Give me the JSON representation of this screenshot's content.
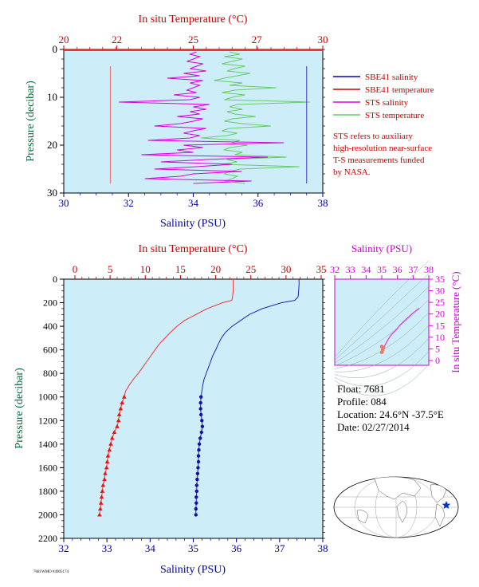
{
  "top_chart": {
    "top_axis_label": "In situ Temperature (°C)",
    "bottom_axis_label": "Salinity (PSU)",
    "left_axis_label": "Pressure (decibar)",
    "temp_ticks": [
      "20",
      "22",
      "25",
      "27",
      "30"
    ],
    "sal_ticks": [
      "30",
      "32",
      "34",
      "36",
      "38"
    ],
    "pres_ticks": [
      "0",
      "10",
      "20",
      "30"
    ]
  },
  "legend": {
    "items": [
      {
        "label": "SBE41 salinity",
        "color": "#0000cc"
      },
      {
        "label": "SBE41 temperature",
        "color": "#cc0000"
      },
      {
        "label": "STS salinity",
        "color": "#dd00dd"
      },
      {
        "label": "STS temperature",
        "color": "#33bb33"
      }
    ],
    "note_lines": [
      "STS refers to auxiliary",
      "high-resolution near-surface",
      "T-S measurements funded",
      "by NASA."
    ]
  },
  "bottom_chart": {
    "top_axis_label": "In situ Temperature (°C)",
    "bottom_axis_label": "Salinity (PSU)",
    "left_axis_label": "Pressure (decibar)",
    "temp_ticks": [
      "0",
      "5",
      "10",
      "15",
      "20",
      "25",
      "30",
      "35"
    ],
    "sal_ticks": [
      "32",
      "33",
      "34",
      "35",
      "36",
      "37",
      "38"
    ],
    "pres_ticks": [
      "0",
      "200",
      "400",
      "600",
      "800",
      "1000",
      "1200",
      "1400",
      "1600",
      "1800",
      "2000",
      "2200"
    ]
  },
  "ts_inset": {
    "top_axis_label": "Salinity (PSU)",
    "right_axis_label": "In situ Temperature (°C)",
    "sal_ticks": [
      "32",
      "33",
      "34",
      "35",
      "36",
      "37",
      "38"
    ],
    "temp_ticks": [
      "0",
      "5",
      "10",
      "15",
      "20",
      "25",
      "30",
      "35"
    ]
  },
  "info": {
    "float": "Float:  7681",
    "profile": "Profile:  084",
    "location": "Location:  24.6°N  -37.5°E",
    "date": "Date:  02/27/2014"
  },
  "footer_code": "7681WMO #4905174",
  "colors": {
    "plot_bg": "#cdeef8",
    "temperature": "#ee3333",
    "salinity": "#2222bb",
    "sts_salinity": "#dd00dd",
    "sts_temperature": "#66cc66",
    "temp_axis": "#cc0000",
    "sal_axis": "#0000aa",
    "pres_axis": "#006633"
  },
  "chart_data": [
    {
      "type": "line",
      "panel": "near-surface",
      "title": "",
      "temp_range": [
        20,
        30
      ],
      "sal_range": [
        30,
        38
      ],
      "pres_range": [
        0,
        30
      ],
      "grid": false,
      "sbe41_temperature": {
        "pressure": [
          3.5,
          28
        ],
        "temperature": [
          21.8,
          21.8
        ]
      },
      "sbe41_salinity": {
        "pressure": [
          3.5,
          28
        ],
        "salinity": [
          37.5,
          37.5
        ]
      },
      "sts_salinity_pressure": [
        0.5,
        1,
        1.5,
        2,
        2.5,
        3,
        3.5,
        4,
        4.5,
        5,
        5.5,
        6,
        6.5,
        7,
        7.5,
        8,
        8.5,
        9,
        9.5,
        10,
        10.5,
        11,
        11.5,
        12,
        12.5,
        13,
        13.5,
        14,
        14.5,
        15,
        15.5,
        16,
        16.5,
        17,
        17.5,
        18,
        18.5,
        19,
        19.5,
        20,
        20.5,
        21,
        21.5,
        22,
        22.5,
        23,
        23.5,
        24,
        24.5,
        25,
        25.5,
        26,
        26.5,
        27,
        27.5,
        28
      ],
      "sts_salinity": [
        34.1,
        33.9,
        34.2,
        34.0,
        33.8,
        34.3,
        34.1,
        33.9,
        34.4,
        33.7,
        34.2,
        33.2,
        34.3,
        33.9,
        34.2,
        34.0,
        33.8,
        34.1,
        33.4,
        34.2,
        33.9,
        31.7,
        34.5,
        34.0,
        34.4,
        33.9,
        34.2,
        33.5,
        34.3,
        34.0,
        33.6,
        32.8,
        34.4,
        34.0,
        33.7,
        34.2,
        33.9,
        32.6,
        36.8,
        33.7,
        34.3,
        33.5,
        34.0,
        32.4,
        36.3,
        34.4,
        33.0,
        35.2,
        34.1,
        32.8,
        35.5,
        34.0,
        33.6,
        32.5,
        35.8,
        34.0
      ],
      "sts_temperature_pressure": [
        0.5,
        1,
        1.5,
        2,
        2.5,
        3,
        3.5,
        4,
        4.5,
        5,
        5.5,
        6,
        6.5,
        7,
        7.5,
        8,
        8.5,
        9,
        9.5,
        10,
        10.5,
        11,
        11.5,
        12,
        12.5,
        13,
        13.5,
        14,
        14.5,
        15,
        15.5,
        16,
        16.5,
        17,
        17.5,
        18,
        18.5,
        19,
        19.5,
        20,
        20.5,
        21,
        21.5,
        22,
        22.5,
        23,
        23.5,
        24,
        24.5,
        25,
        25.5,
        26,
        26.5,
        27,
        27.5,
        28
      ],
      "sts_temperature": [
        26.4,
        26.8,
        26.2,
        26.9,
        26.5,
        26.1,
        27.0,
        26.6,
        26.3,
        27.2,
        26.7,
        26.2,
        25.8,
        26.9,
        26.4,
        28.2,
        26.6,
        26.1,
        27.0,
        26.5,
        26.2,
        29.5,
        26.7,
        26.4,
        26.9,
        26.3,
        26.6,
        27.4,
        26.5,
        26.2,
        26.9,
        28.0,
        26.4,
        26.1,
        26.7,
        26.3,
        25.3,
        26.8,
        26.5,
        27.1,
        26.4,
        26.2,
        26.9,
        26.6,
        28.6,
        26.3,
        26.7,
        26.1,
        29.1,
        26.8,
        26.4,
        26.2,
        26.7,
        26.5,
        26.2,
        27.0
      ]
    },
    {
      "type": "line",
      "panel": "full-profile",
      "title": "",
      "temp_range": [
        0,
        35
      ],
      "sal_range": [
        32,
        38
      ],
      "pres_range": [
        0,
        2200
      ],
      "grid": false,
      "temperature_profile": {
        "pressure": [
          0,
          50,
          100,
          150,
          180,
          200,
          250,
          300,
          350,
          400,
          450,
          500,
          550,
          600,
          650,
          700,
          750,
          800,
          850,
          900,
          950,
          1000,
          1050,
          1100,
          1150,
          1200,
          1250,
          1300,
          1350,
          1400,
          1450,
          1500,
          1550,
          1600,
          1650,
          1700,
          1750,
          1800,
          1850,
          1900,
          1950,
          2000
        ],
        "temperature": [
          22.5,
          22.5,
          22.5,
          22.4,
          22.3,
          21.0,
          18.8,
          17.2,
          15.6,
          14.5,
          13.6,
          12.8,
          12.0,
          11.4,
          10.8,
          10.2,
          9.6,
          9.0,
          8.3,
          7.7,
          7.2,
          7.0,
          6.7,
          6.5,
          6.3,
          6.2,
          6.0,
          5.6,
          5.3,
          5.1,
          4.9,
          4.7,
          4.6,
          4.5,
          4.3,
          4.2,
          4.0,
          3.9,
          3.8,
          3.7,
          3.6,
          3.5
        ]
      },
      "salinity_profile": {
        "pressure": [
          0,
          50,
          100,
          150,
          180,
          200,
          250,
          300,
          350,
          400,
          450,
          500,
          550,
          600,
          650,
          700,
          750,
          800,
          850,
          900,
          950,
          1000,
          1050,
          1100,
          1150,
          1200,
          1250,
          1300,
          1350,
          1400,
          1450,
          1500,
          1550,
          1600,
          1650,
          1700,
          1750,
          1800,
          1850,
          1900,
          1950,
          2000
        ],
        "salinity": [
          37.45,
          37.45,
          37.44,
          37.43,
          37.35,
          37.05,
          36.6,
          36.3,
          36.1,
          35.9,
          35.75,
          35.65,
          35.58,
          35.52,
          35.45,
          35.4,
          35.35,
          35.3,
          35.25,
          35.22,
          35.2,
          35.18,
          35.17,
          35.17,
          35.18,
          35.2,
          35.21,
          35.19,
          35.16,
          35.14,
          35.13,
          35.12,
          35.12,
          35.11,
          35.1,
          35.09,
          35.08,
          35.08,
          35.07,
          35.07,
          35.06,
          35.06
        ]
      },
      "marker_pressures": [
        1000,
        1050,
        1100,
        1150,
        1200,
        1250,
        1300,
        1350,
        1400,
        1450,
        1500,
        1550,
        1600,
        1650,
        1700,
        1750,
        1800,
        1850,
        1900,
        1950,
        2000
      ]
    },
    {
      "type": "line",
      "panel": "ts-diagram",
      "title": "",
      "sal_range": [
        32,
        38
      ],
      "temp_range": [
        0,
        35
      ],
      "salinity": [
        35.0,
        35.1,
        35.2,
        35.4,
        35.6,
        35.9,
        36.2,
        36.6,
        37.0,
        37.4
      ],
      "temperature": [
        3.5,
        5.0,
        6.5,
        9.0,
        11.0,
        13.0,
        15.5,
        18.0,
        20.5,
        22.5
      ]
    }
  ]
}
